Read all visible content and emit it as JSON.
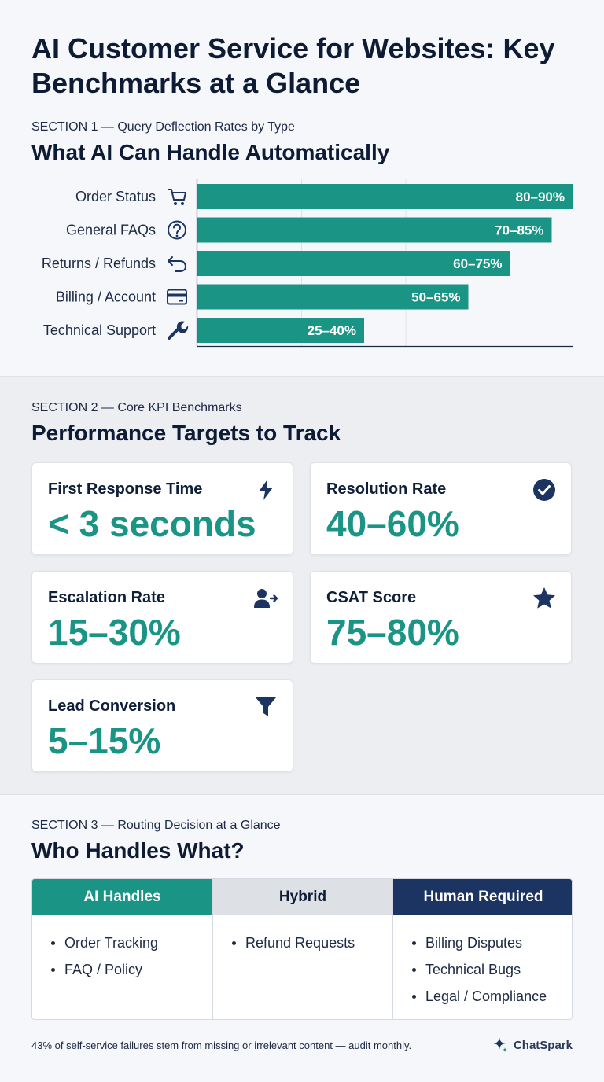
{
  "header": {
    "title": "AI Customer Service for Websites: Key Benchmarks at a Glance"
  },
  "section1": {
    "label": "SECTION 1 — Query Deflection Rates by Type",
    "heading": "What AI Can Handle Automatically"
  },
  "chart_data": {
    "type": "bar",
    "orientation": "horizontal",
    "categories": [
      "Order Status",
      "General FAQs",
      "Returns / Refunds",
      "Billing / Account",
      "Technical Support"
    ],
    "category_icons": [
      "cart-icon",
      "question-circle-icon",
      "return-arrow-icon",
      "credit-card-icon",
      "wrench-icon"
    ],
    "ranges": [
      [
        80,
        90
      ],
      [
        70,
        85
      ],
      [
        60,
        75
      ],
      [
        50,
        65
      ],
      [
        25,
        40
      ]
    ],
    "value_labels": [
      "80–90%",
      "70–85%",
      "60–75%",
      "50–65%",
      "25–40%"
    ],
    "xlim": [
      0,
      100
    ],
    "grid": true,
    "bar_color": "#1a9485"
  },
  "section2": {
    "label": "SECTION 2 — Core KPI Benchmarks",
    "heading": "Performance Targets to Track",
    "cards": [
      {
        "title": "First Response Time",
        "value": "< 3 seconds",
        "icon": "lightning-icon"
      },
      {
        "title": "Resolution Rate",
        "value": "40–60%",
        "icon": "check-circle-icon"
      },
      {
        "title": "Escalation Rate",
        "value": "15–30%",
        "icon": "user-arrow-icon"
      },
      {
        "title": "CSAT Score",
        "value": "75–80%",
        "icon": "star-icon"
      },
      {
        "title": "Lead Conversion",
        "value": "5–15%",
        "icon": "funnel-icon"
      }
    ]
  },
  "section3": {
    "label": "SECTION 3 — Routing Decision at a Glance",
    "heading": "Who Handles What?",
    "columns": [
      {
        "header": "AI Handles",
        "items": [
          "Order Tracking",
          "FAQ / Policy"
        ]
      },
      {
        "header": "Hybrid",
        "items": [
          "Refund Requests"
        ]
      },
      {
        "header": "Human Required",
        "items": [
          "Billing Disputes",
          "Technical Bugs",
          "Legal / Compliance"
        ]
      }
    ]
  },
  "footer": {
    "note": "43% of self-service failures stem from missing or irrelevant content — audit monthly.",
    "brand": "ChatSpark"
  },
  "colors": {
    "teal": "#1a9485",
    "navy": "#1c3461",
    "grey_header": "#dde0e5",
    "text": "#0d1b35"
  }
}
